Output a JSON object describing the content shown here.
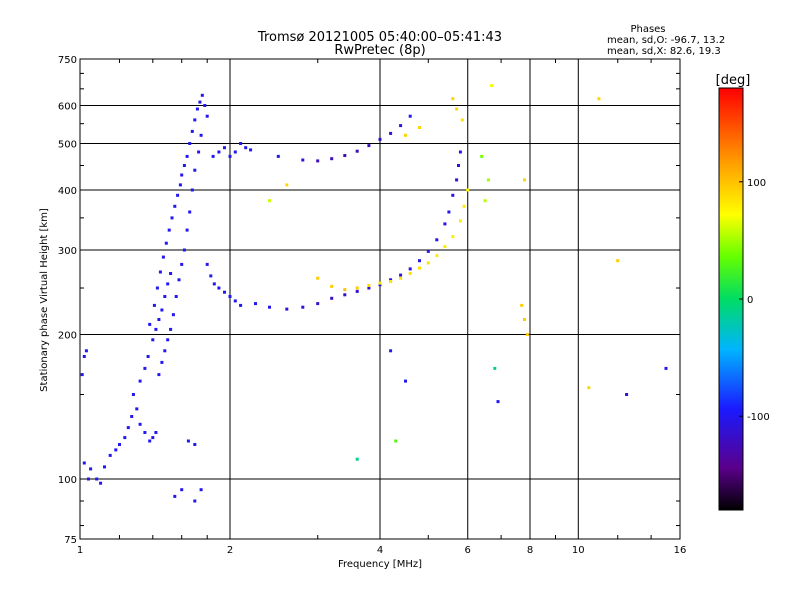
{
  "chart_data": {
    "type": "scatter",
    "title": "Tromsø 20121005 05:40:00–05:41:43",
    "subtitle": "RwPretec (8p)",
    "xlabel": "Frequency [MHz]",
    "ylabel": "Stationary phase Virtual Height [km]",
    "x_scale": "log",
    "y_scale": "log",
    "xlim": [
      1,
      16
    ],
    "ylim": [
      75,
      750
    ],
    "x_ticks": [
      1,
      2,
      4,
      6,
      8,
      10,
      16
    ],
    "x_tick_labels": [
      "1",
      "2",
      "4",
      "6",
      "8",
      "10",
      "16"
    ],
    "y_ticks": [
      75,
      100,
      200,
      300,
      400,
      500,
      600,
      750
    ],
    "y_tick_labels": [
      "75",
      "100",
      "200",
      "300",
      "400",
      "500",
      "600",
      "750"
    ],
    "grid_x": [
      2,
      4,
      6,
      8,
      10
    ],
    "grid_y": [
      100,
      200,
      300,
      400,
      500,
      600
    ],
    "grid": true,
    "phase_stats": {
      "title": "Phases",
      "line_o": "mean, sd,O: -96.7, 13.2",
      "line_x": "mean, sd,X:  82.6, 19.3"
    },
    "colorbar": {
      "label": "[deg]",
      "min": -180,
      "max": 180,
      "ticks": [
        100,
        0,
        -100
      ],
      "tick_labels": [
        "100",
        "0",
        "-100"
      ]
    },
    "series": [
      {
        "points": [
          [
            1.01,
            165,
            -100
          ],
          [
            1.02,
            180,
            -100
          ],
          [
            1.03,
            185,
            -98
          ],
          [
            1.02,
            108,
            -100
          ],
          [
            1.05,
            105,
            -100
          ],
          [
            1.08,
            100,
            -100
          ],
          [
            1.1,
            98,
            -105
          ],
          [
            1.04,
            100,
            -102
          ],
          [
            1.12,
            106,
            -100
          ],
          [
            1.15,
            112,
            -100
          ],
          [
            1.18,
            115,
            -98
          ],
          [
            1.2,
            118,
            -100
          ],
          [
            1.23,
            122,
            -100
          ],
          [
            1.25,
            128,
            -100
          ],
          [
            1.27,
            135,
            -102
          ],
          [
            1.3,
            140,
            -100
          ],
          [
            1.32,
            130,
            -100
          ],
          [
            1.35,
            125,
            -100
          ],
          [
            1.38,
            120,
            -98
          ],
          [
            1.4,
            122,
            -100
          ],
          [
            1.42,
            125,
            -100
          ],
          [
            1.28,
            150,
            -100
          ],
          [
            1.32,
            160,
            -100
          ],
          [
            1.35,
            170,
            -100
          ],
          [
            1.37,
            180,
            -100
          ],
          [
            1.4,
            195,
            -100
          ],
          [
            1.42,
            205,
            -100
          ],
          [
            1.44,
            215,
            -100
          ],
          [
            1.46,
            225,
            -100
          ],
          [
            1.48,
            240,
            -100
          ],
          [
            1.5,
            255,
            -100
          ],
          [
            1.52,
            268,
            -100
          ],
          [
            1.38,
            210,
            -100
          ],
          [
            1.41,
            230,
            -100
          ],
          [
            1.43,
            250,
            -100
          ],
          [
            1.45,
            270,
            -100
          ],
          [
            1.47,
            290,
            -100
          ],
          [
            1.49,
            310,
            -100
          ],
          [
            1.51,
            330,
            -100
          ],
          [
            1.53,
            350,
            -100
          ],
          [
            1.55,
            370,
            -100
          ],
          [
            1.57,
            390,
            -100
          ],
          [
            1.59,
            410,
            -100
          ],
          [
            1.6,
            430,
            -100
          ],
          [
            1.62,
            450,
            -100
          ],
          [
            1.64,
            470,
            -100
          ],
          [
            1.66,
            500,
            -100
          ],
          [
            1.68,
            530,
            -100
          ],
          [
            1.7,
            560,
            -100
          ],
          [
            1.72,
            590,
            -100
          ],
          [
            1.74,
            610,
            -100
          ],
          [
            1.76,
            630,
            -100
          ],
          [
            1.78,
            600,
            -100
          ],
          [
            1.8,
            570,
            -100
          ],
          [
            1.75,
            520,
            -100
          ],
          [
            1.73,
            480,
            -100
          ],
          [
            1.7,
            440,
            -100
          ],
          [
            1.68,
            400,
            -100
          ],
          [
            1.66,
            360,
            -100
          ],
          [
            1.64,
            330,
            -100
          ],
          [
            1.62,
            300,
            -100
          ],
          [
            1.6,
            280,
            -100
          ],
          [
            1.58,
            260,
            -100
          ],
          [
            1.56,
            240,
            -100
          ],
          [
            1.54,
            220,
            -100
          ],
          [
            1.52,
            205,
            -100
          ],
          [
            1.5,
            195,
            -100
          ],
          [
            1.48,
            185,
            -100
          ],
          [
            1.46,
            175,
            -100
          ],
          [
            1.44,
            165,
            -100
          ],
          [
            1.8,
            280,
            -100
          ],
          [
            1.83,
            265,
            -100
          ],
          [
            1.86,
            255,
            -100
          ],
          [
            1.9,
            250,
            -100
          ],
          [
            1.95,
            245,
            -100
          ],
          [
            2.0,
            240,
            -100
          ],
          [
            2.05,
            235,
            -100
          ],
          [
            2.1,
            230,
            -100
          ],
          [
            1.85,
            470,
            -100
          ],
          [
            1.9,
            480,
            -100
          ],
          [
            1.95,
            490,
            -100
          ],
          [
            2.0,
            470,
            -100
          ],
          [
            2.05,
            480,
            -100
          ],
          [
            2.1,
            500,
            -100
          ],
          [
            2.15,
            490,
            -100
          ],
          [
            1.55,
            92,
            -100
          ],
          [
            1.6,
            95,
            -100
          ],
          [
            1.7,
            90,
            -100
          ],
          [
            1.75,
            95,
            -100
          ],
          [
            1.65,
            120,
            -100
          ],
          [
            1.7,
            118,
            -100
          ],
          [
            2.25,
            232,
            -100
          ],
          [
            2.4,
            228,
            -105
          ],
          [
            2.6,
            226,
            -110
          ],
          [
            2.8,
            228,
            -112
          ],
          [
            3.0,
            232,
            -115
          ],
          [
            3.2,
            238,
            -118
          ],
          [
            3.4,
            242,
            -115
          ],
          [
            3.6,
            246,
            -112
          ],
          [
            3.8,
            250,
            -110
          ],
          [
            4.0,
            254,
            -110
          ],
          [
            4.2,
            260,
            -108
          ],
          [
            4.4,
            266,
            -108
          ],
          [
            4.6,
            274,
            -105
          ],
          [
            4.8,
            285,
            -105
          ],
          [
            5.0,
            298,
            -105
          ],
          [
            5.2,
            315,
            -105
          ],
          [
            5.4,
            340,
            -105
          ],
          [
            5.5,
            360,
            -105
          ],
          [
            5.6,
            390,
            -105
          ],
          [
            5.7,
            420,
            -105
          ],
          [
            5.75,
            450,
            -105
          ],
          [
            5.8,
            480,
            -105
          ],
          [
            2.2,
            485,
            -100
          ],
          [
            2.5,
            470,
            -100
          ],
          [
            2.8,
            462,
            -110
          ],
          [
            3.0,
            460,
            -120
          ],
          [
            3.2,
            465,
            -125
          ],
          [
            3.4,
            472,
            -125
          ],
          [
            3.6,
            482,
            -122
          ],
          [
            3.8,
            495,
            -118
          ],
          [
            4.0,
            510,
            -115
          ],
          [
            4.2,
            525,
            -110
          ],
          [
            4.4,
            545,
            -105
          ],
          [
            4.6,
            570,
            -100
          ],
          [
            3.0,
            262,
            95
          ],
          [
            3.2,
            252,
            95
          ],
          [
            3.4,
            248,
            100
          ],
          [
            3.6,
            250,
            95
          ],
          [
            3.8,
            253,
            90
          ],
          [
            4.0,
            256,
            85
          ],
          [
            4.2,
            258,
            85
          ],
          [
            4.4,
            262,
            85
          ],
          [
            4.6,
            268,
            85
          ],
          [
            4.8,
            275,
            85
          ],
          [
            5.0,
            282,
            85
          ],
          [
            5.2,
            292,
            80
          ],
          [
            5.4,
            305,
            80
          ],
          [
            5.6,
            320,
            80
          ],
          [
            5.8,
            345,
            80
          ],
          [
            5.9,
            370,
            80
          ],
          [
            6.0,
            400,
            75
          ],
          [
            5.85,
            560,
            85
          ],
          [
            5.7,
            590,
            90
          ],
          [
            5.6,
            620,
            90
          ],
          [
            4.5,
            520,
            90
          ],
          [
            4.8,
            540,
            90
          ],
          [
            6.5,
            380,
            55
          ],
          [
            6.6,
            420,
            50
          ],
          [
            6.4,
            470,
            40
          ],
          [
            6.7,
            660,
            70
          ],
          [
            2.4,
            380,
            60
          ],
          [
            2.6,
            410,
            90
          ],
          [
            7.7,
            230,
            95
          ],
          [
            7.8,
            215,
            95
          ],
          [
            7.9,
            200,
            95
          ],
          [
            7.8,
            420,
            90
          ],
          [
            12.0,
            285,
            95
          ],
          [
            11.0,
            620,
            90
          ],
          [
            10.5,
            155,
            90
          ],
          [
            6.8,
            170,
            -10
          ],
          [
            6.9,
            145,
            -100
          ],
          [
            15.0,
            170,
            -100
          ],
          [
            12.5,
            150,
            -110
          ],
          [
            4.2,
            185,
            -100
          ],
          [
            4.5,
            160,
            -100
          ],
          [
            3.6,
            110,
            -10
          ],
          [
            4.3,
            120,
            30
          ]
        ]
      }
    ]
  }
}
